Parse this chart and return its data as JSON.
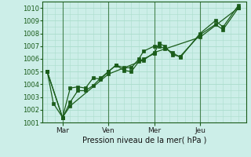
{
  "bg_color": "#cceee8",
  "grid_color": "#aaddcc",
  "line_color": "#1a5c1a",
  "marker_color": "#1a5c1a",
  "xlabel": "Pression niveau de la mer( hPa )",
  "ylim": [
    1001,
    1010.5
  ],
  "yticks": [
    1001,
    1002,
    1003,
    1004,
    1005,
    1006,
    1007,
    1008,
    1009,
    1010
  ],
  "xtick_labels": [
    "Mar",
    "Ven",
    "Mer",
    "Jeu"
  ],
  "xtick_positions": [
    1,
    4,
    7,
    10
  ],
  "xlim": [
    -0.3,
    13.0
  ],
  "total_hours": 13,
  "series1_x": [
    0,
    0.4,
    1.0,
    1.5,
    2.0,
    2.5,
    3.0,
    3.5,
    4.0,
    4.5,
    5.0,
    5.5,
    6.0,
    6.3,
    7.0,
    7.3,
    7.7,
    8.2,
    8.7,
    10.0,
    11.0,
    11.5,
    12.5
  ],
  "series1_y": [
    1005.0,
    1002.5,
    1001.4,
    1003.7,
    1003.8,
    1003.7,
    1004.5,
    1004.4,
    1005.0,
    1005.5,
    1005.3,
    1005.3,
    1006.0,
    1006.6,
    1007.0,
    1007.0,
    1006.8,
    1006.5,
    1006.1,
    1008.0,
    1009.0,
    1008.5,
    1010.2
  ],
  "series2_x": [
    0,
    1.0,
    1.5,
    2.0,
    2.5,
    3.0,
    3.5,
    4.0,
    4.5,
    5.0,
    5.5,
    6.0,
    6.3,
    7.0,
    7.3,
    7.7,
    8.2,
    8.7,
    10.0,
    11.0,
    11.5,
    12.5
  ],
  "series2_y": [
    1005.0,
    1001.35,
    1002.6,
    1003.5,
    1003.5,
    1003.9,
    1004.5,
    1005.0,
    1005.5,
    1005.1,
    1005.0,
    1005.8,
    1006.0,
    1006.4,
    1007.2,
    1007.0,
    1006.3,
    1006.2,
    1007.9,
    1008.7,
    1008.3,
    1010.0
  ],
  "series3_x": [
    0,
    1.0,
    1.5,
    4.0,
    6.3,
    7.0,
    10.0,
    12.5
  ],
  "series3_y": [
    1005.0,
    1001.4,
    1002.3,
    1004.8,
    1005.9,
    1006.5,
    1007.7,
    1010.0
  ]
}
